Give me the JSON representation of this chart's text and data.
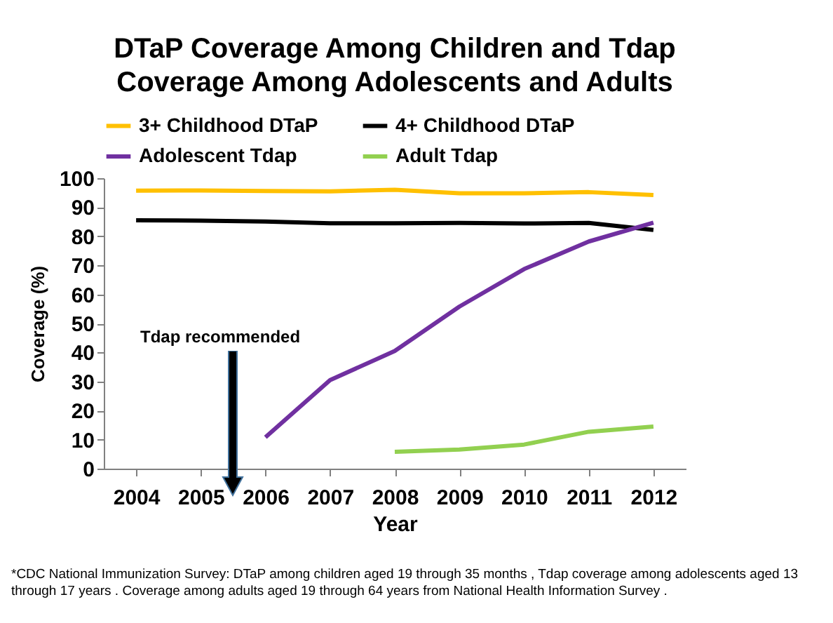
{
  "chart_data": {
    "type": "line",
    "title": [
      "DTaP Coverage Among Children and Tdap",
      "Coverage Among Adolescents and Adults"
    ],
    "xlabel": "Year",
    "ylabel": "Coverage (%)",
    "categories": [
      "2004",
      "2005",
      "2006",
      "2007",
      "2008",
      "2009",
      "2010",
      "2011",
      "2012"
    ],
    "series": [
      {
        "name": "3+ Childhood DTaP",
        "color": "#ffc000",
        "values": [
          95.7,
          95.8,
          95.6,
          95.5,
          96.0,
          94.8,
          94.8,
          95.2,
          94.2
        ]
      },
      {
        "name": "4+ Childhood DTaP",
        "color": "#000000",
        "values": [
          85.5,
          85.4,
          85.1,
          84.5,
          84.5,
          84.6,
          84.4,
          84.6,
          82.2
        ]
      },
      {
        "name": "Adolescent Tdap",
        "color": "#7030a0",
        "values": [
          null,
          null,
          10.8,
          30.5,
          40.5,
          55.8,
          68.7,
          78.2,
          84.7
        ]
      },
      {
        "name": "Adult Tdap",
        "color": "#92d050",
        "values": [
          null,
          null,
          null,
          null,
          5.8,
          6.6,
          8.3,
          12.7,
          14.5
        ]
      }
    ],
    "ylim": [
      0,
      100
    ],
    "yticks": [
      0,
      10,
      20,
      30,
      40,
      50,
      60,
      70,
      80,
      90,
      100
    ],
    "grid": false,
    "legend": "top",
    "marker": "none",
    "line_style": "solid",
    "annotations": [
      "Tdap recommended",
      "*CDC National Immunization Survey: DTaP among children aged 19 through 35 months , Tdap coverage among adolescents aged 13 through 17 years .  Coverage among  adults aged 19 through 64 years from National Health Information Survey ."
    ]
  }
}
